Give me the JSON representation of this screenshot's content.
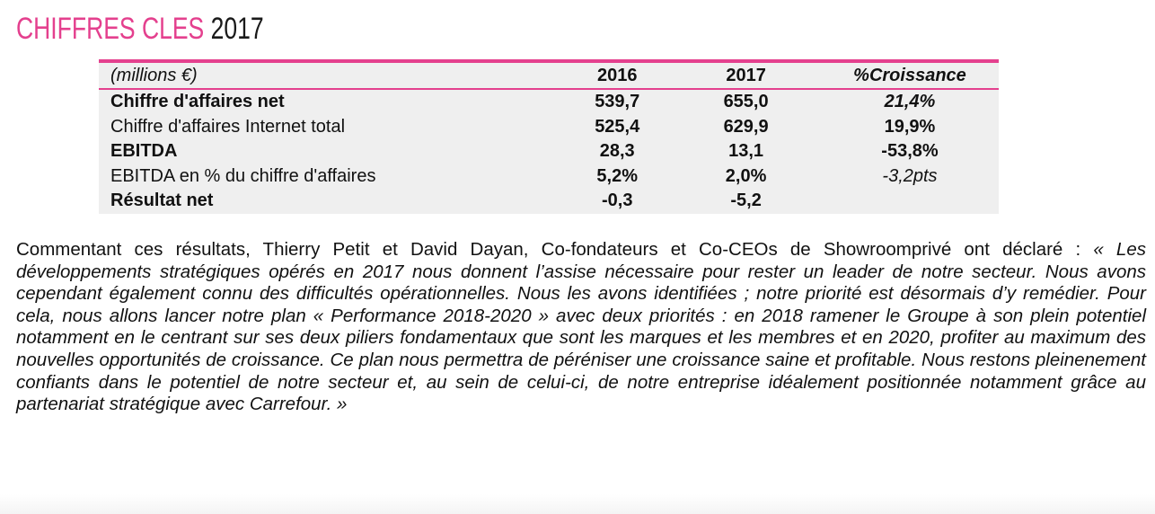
{
  "header": {
    "title_part1": "CHIFFRES CLES",
    "title_part2": "2017",
    "accent_color": "#e4408e"
  },
  "table": {
    "columns": [
      "(millions €)",
      "2016",
      "2017",
      "%Croissance"
    ],
    "rows": [
      {
        "label": "Chiffre d'affaires net",
        "y2016": "539,7",
        "y2017": "655,0",
        "growth": "21,4%"
      },
      {
        "label": "Chiffre d'affaires Internet total",
        "y2016": "525,4",
        "y2017": "629,9",
        "growth": "19,9%"
      },
      {
        "label": "EBITDA",
        "y2016": "28,3",
        "y2017": "13,1",
        "growth": "-53,8%"
      },
      {
        "label": "EBITDA en % du chiffre d'affaires",
        "y2016": "5,2%",
        "y2017": "2,0%",
        "growth": "-3,2pts"
      },
      {
        "label": "Résultat net",
        "y2016": "-0,3",
        "y2017": "-5,2",
        "growth": ""
      }
    ]
  },
  "commentary": {
    "intro": "Commentant ces résultats, Thierry Petit et David Dayan, Co-fondateurs et Co-CEOs de Showroomprivé ont déclaré :",
    "quote": "« Les développements stratégiques opérés en 2017 nous donnent l’assise nécessaire pour rester un leader de notre secteur. Nous avons cependant également connu des difficultés opérationnelles. Nous les avons identifiées ; notre priorité est désormais d’y remédier. Pour cela, nous allons lancer notre plan « Performance 2018-2020 » avec deux priorités : en 2018 ramener le Groupe à son plein potentiel notamment en le centrant sur ses deux piliers fondamentaux que sont les marques et les membres et en 2020, profiter au maximum des nouvelles opportunités de croissance. Ce plan nous permettra de péréniser une croissance saine et profitable. Nous restons pleinenement confiants dans le potentiel de notre secteur et, au sein de celui-ci, de notre entreprise idéalement positionnée notamment grâce au partenariat stratégique avec Carrefour. »"
  }
}
